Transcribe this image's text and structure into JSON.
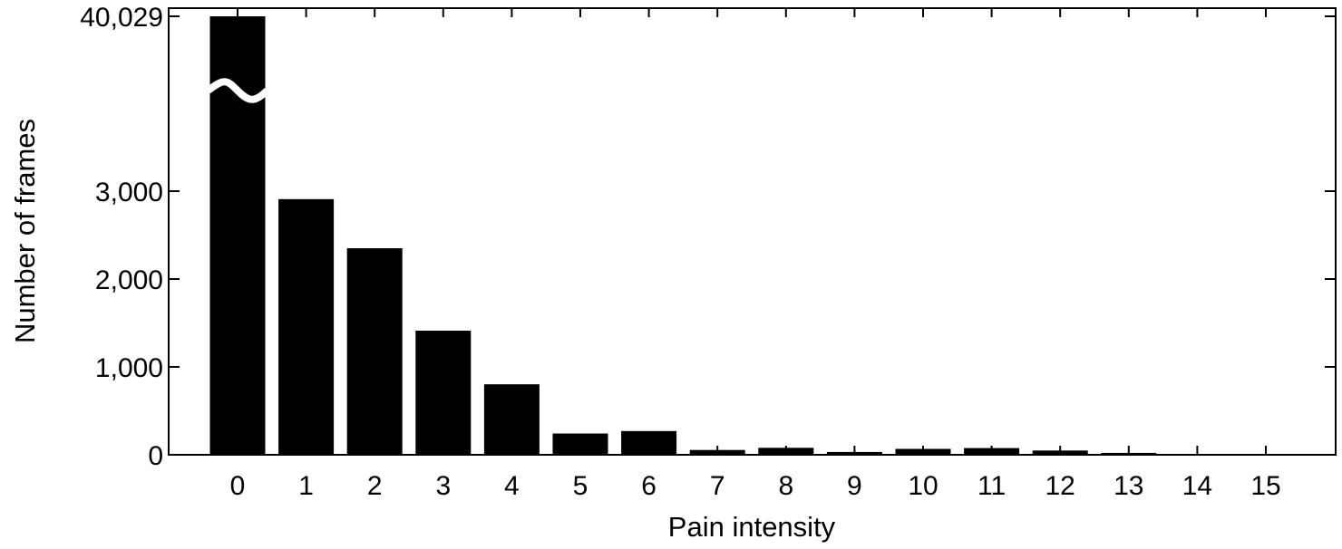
{
  "chart_data": {
    "type": "bar",
    "xlabel": "Pain intensity",
    "ylabel": "Number of frames",
    "categories": [
      "0",
      "1",
      "2",
      "3",
      "4",
      "5",
      "6",
      "7",
      "8",
      "9",
      "10",
      "11",
      "12",
      "13",
      "14",
      "15"
    ],
    "values": [
      40029,
      2909,
      2351,
      1412,
      802,
      242,
      270,
      55,
      79,
      32,
      67,
      76,
      48,
      22,
      1,
      5
    ],
    "ylim": [
      0,
      40029
    ],
    "axis_break": true,
    "yticks": [
      {
        "value": 0,
        "label": "0"
      },
      {
        "value": 1000,
        "label": "1,000"
      },
      {
        "value": 2000,
        "label": "2,000"
      },
      {
        "value": 3000,
        "label": "3,000"
      },
      {
        "value": 40029,
        "label": "40,029"
      }
    ],
    "grid": false,
    "bar_color": "#000000"
  }
}
